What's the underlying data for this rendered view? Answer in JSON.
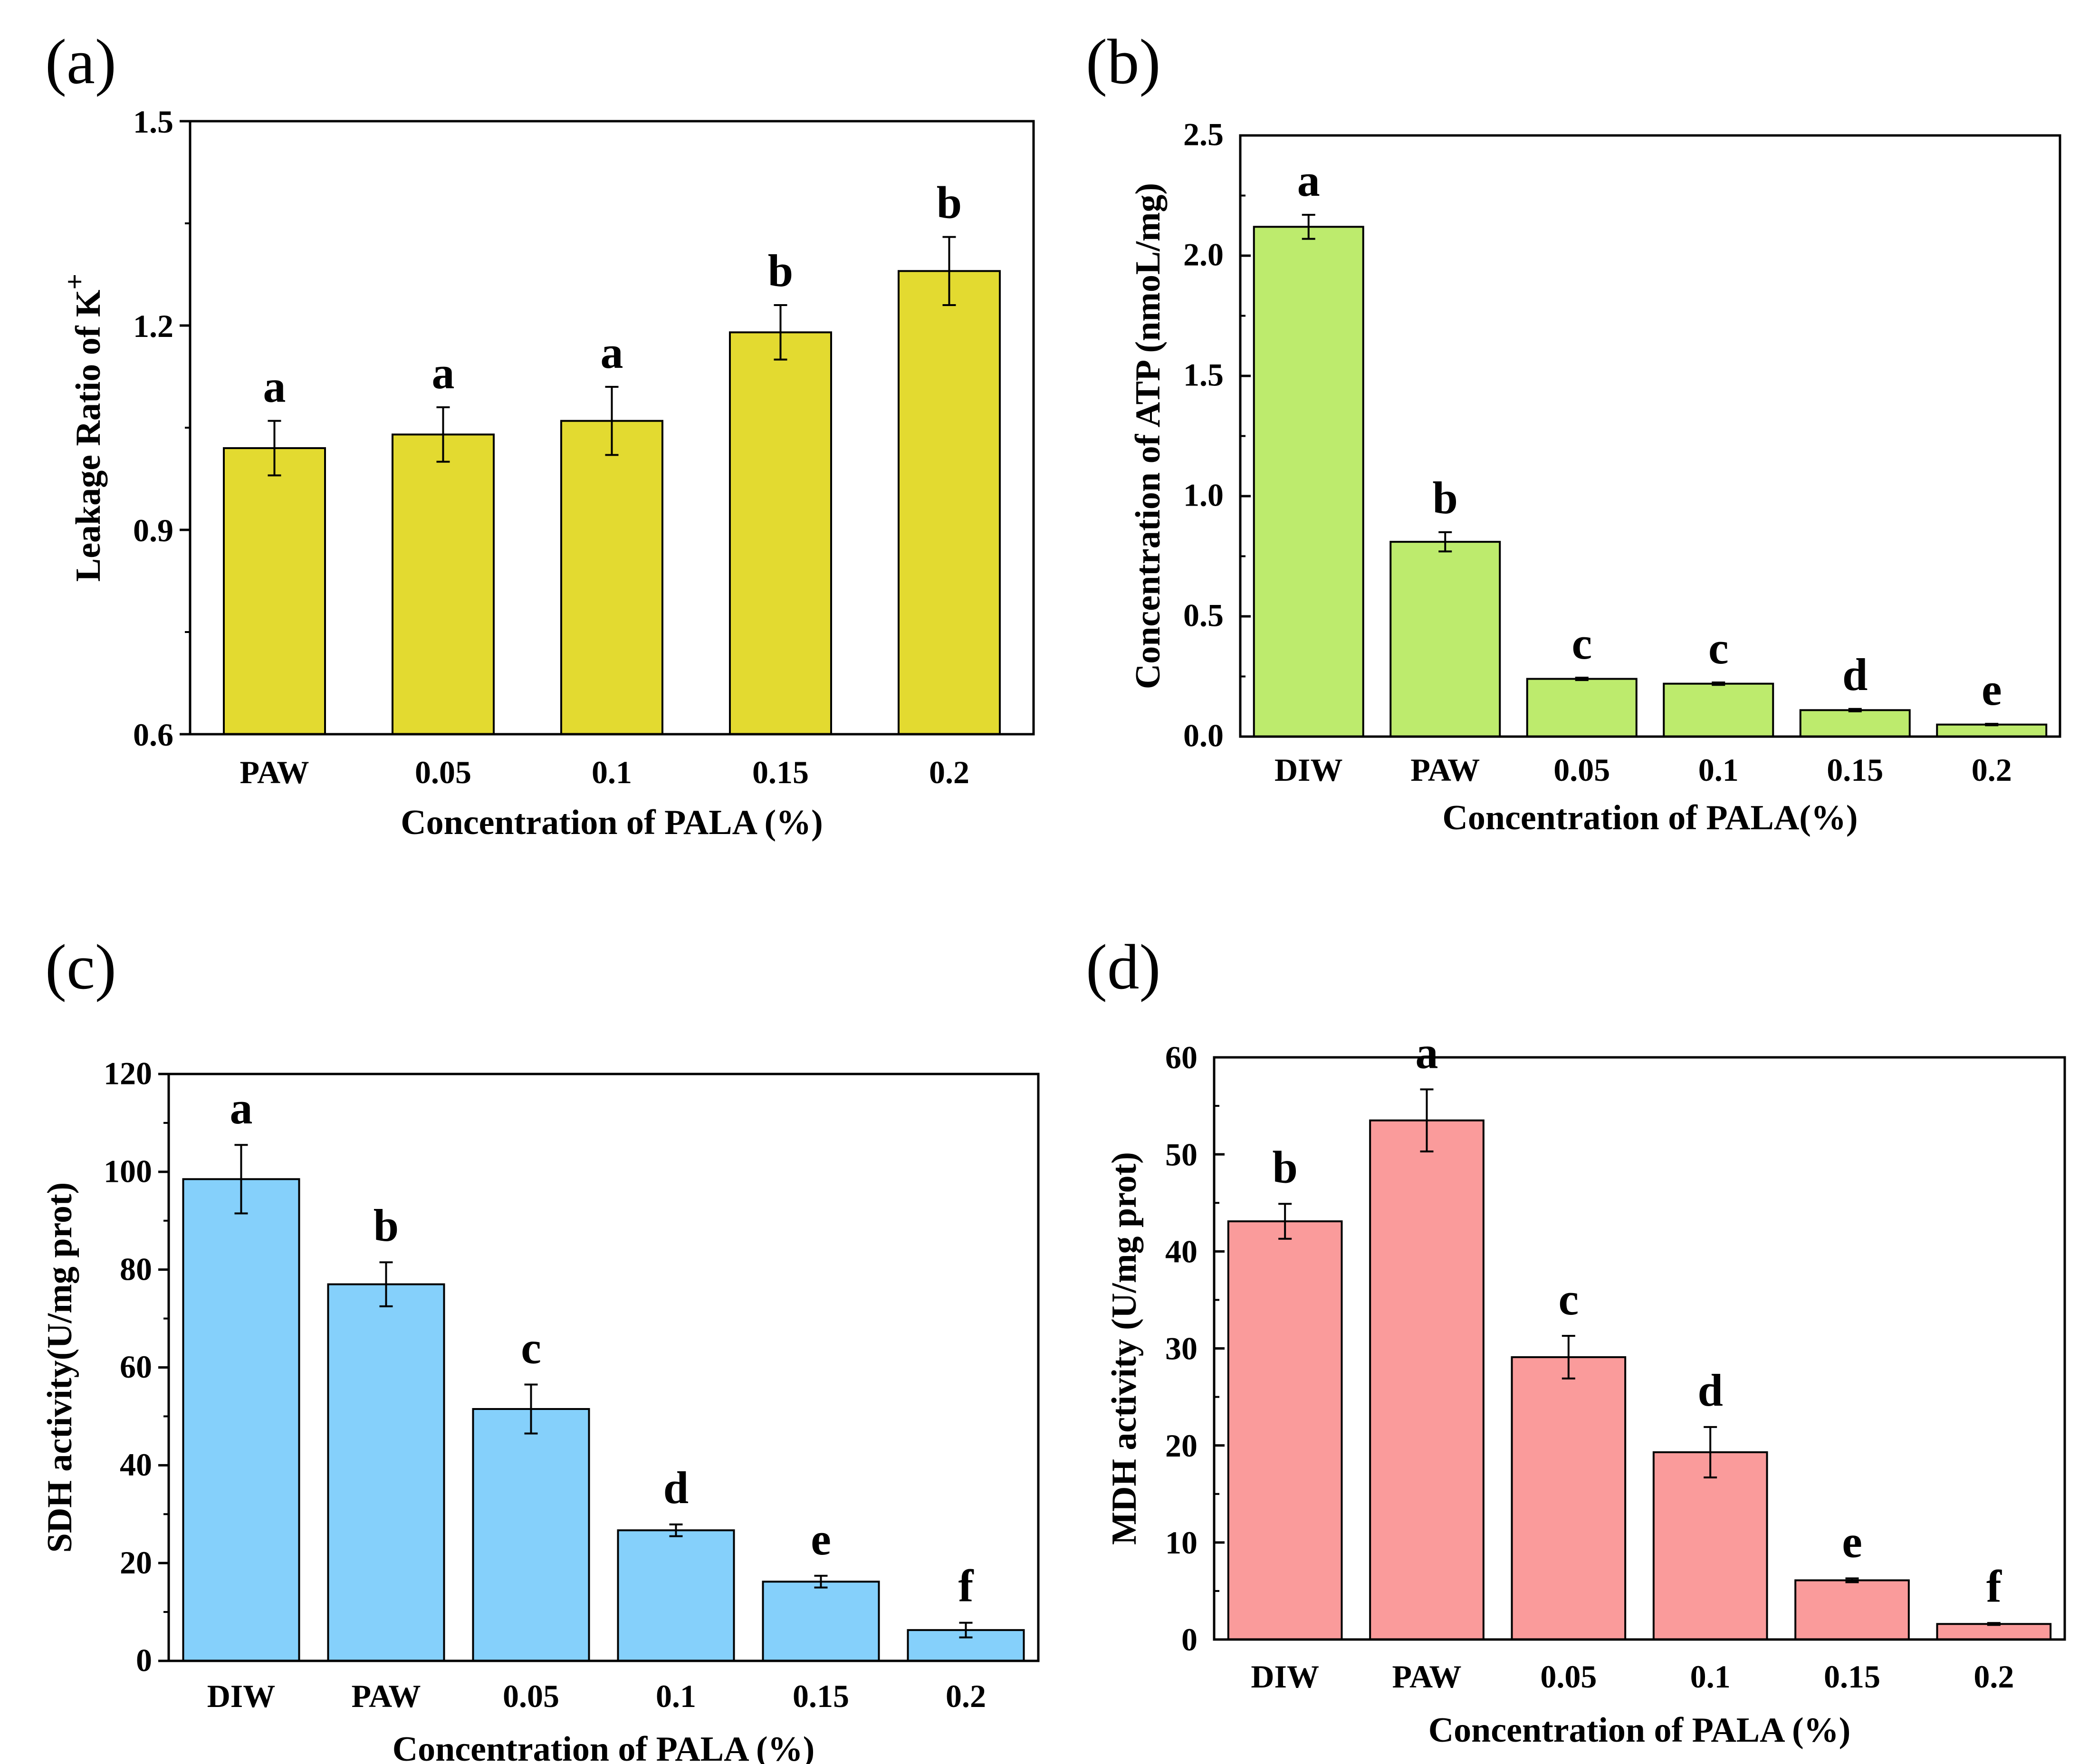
{
  "figure": {
    "panels": [
      {
        "id": "a",
        "label": "(a)"
      },
      {
        "id": "b",
        "label": "(b)"
      },
      {
        "id": "c",
        "label": "(c)"
      },
      {
        "id": "d",
        "label": "(d)"
      }
    ]
  },
  "chart_data": [
    {
      "panel": "(a)",
      "type": "bar",
      "xlabel": "Concentration of PALA (%)",
      "ylabel": "Leakage Ratio of K",
      "ylabel_superscript": "+",
      "ylim": [
        0.6,
        1.5
      ],
      "yticks": [
        "0.6",
        "0.9",
        "1.2",
        "1.5"
      ],
      "categories": [
        "PAW",
        "0.05",
        "0.1",
        "0.15",
        "0.2"
      ],
      "values": [
        1.02,
        1.04,
        1.06,
        1.19,
        1.28
      ],
      "errors": [
        0.04,
        0.04,
        0.05,
        0.04,
        0.05
      ],
      "letters": [
        "a",
        "a",
        "a",
        "b",
        "b"
      ],
      "color": "#E3DA30"
    },
    {
      "panel": "(b)",
      "type": "bar",
      "xlabel": "Concentration of PALA(%)",
      "ylabel": "Concentration of ATP (nmoL/mg)",
      "ylim": [
        0,
        2.5
      ],
      "yticks": [
        "0.0",
        "0.5",
        "1.0",
        "1.5",
        "2.0",
        "2.5"
      ],
      "categories": [
        "DIW",
        "PAW",
        "0.05",
        "0.1",
        "0.15",
        "0.2"
      ],
      "values": [
        2.12,
        0.81,
        0.24,
        0.22,
        0.11,
        0.05
      ],
      "errors": [
        0.05,
        0.04,
        0.005,
        0.005,
        0.005,
        0.003
      ],
      "letters": [
        "a",
        "b",
        "c",
        "c",
        "d",
        "e"
      ],
      "color": "#BDEB6D"
    },
    {
      "panel": "(c)",
      "type": "bar",
      "xlabel": "Concentration of PALA (%)",
      "ylabel": "SDH activity(U/mg prot)",
      "ylim": [
        0,
        120
      ],
      "yticks": [
        "0",
        "20",
        "40",
        "60",
        "80",
        "100",
        "120"
      ],
      "categories": [
        "DIW",
        "PAW",
        "0.05",
        "0.1",
        "0.15",
        "0.2"
      ],
      "values": [
        98.5,
        77,
        51.5,
        26.7,
        16.2,
        6.3
      ],
      "errors": [
        7,
        4.5,
        5,
        1.2,
        1.2,
        1.5
      ],
      "letters": [
        "a",
        "b",
        "c",
        "d",
        "e",
        "f"
      ],
      "color": "#85D0FB"
    },
    {
      "panel": "(d)",
      "type": "bar",
      "xlabel": "Concentration of PALA (%)",
      "ylabel": "MDH activity (U/mg prot)",
      "ylim": [
        0,
        60
      ],
      "yticks": [
        "0",
        "10",
        "20",
        "30",
        "40",
        "50",
        "60"
      ],
      "categories": [
        "DIW",
        "PAW",
        "0.05",
        "0.1",
        "0.15",
        "0.2"
      ],
      "values": [
        43.1,
        53.5,
        29.1,
        19.3,
        6.1,
        1.6
      ],
      "errors": [
        1.8,
        3.2,
        2.2,
        2.6,
        0.2,
        0.1
      ],
      "letters": [
        "b",
        "a",
        "c",
        "d",
        "e",
        "f"
      ],
      "color": "#FA9B9B"
    }
  ]
}
